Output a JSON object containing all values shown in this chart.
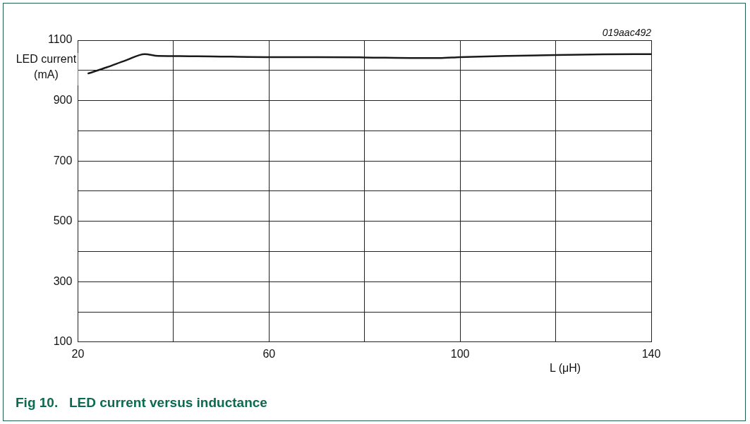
{
  "chart_data": {
    "type": "line",
    "title": "Fig 10.   LED current versus inductance",
    "xlabel": "L (μH)",
    "ylabel": "LED current (mA)",
    "annotations": [
      "019aac492"
    ],
    "x": [
      22.2,
      26,
      30,
      34,
      36.8,
      45,
      60,
      70,
      80,
      90.9,
      95.6,
      100,
      110,
      120,
      130,
      140
    ],
    "series": [
      {
        "color": "#1a1a1a",
        "values": [
          990,
          1010,
          1033,
          1054,
          1048,
          1047,
          1044,
          1044,
          1043,
          1041,
          1041,
          1044,
          1048,
          1051,
          1053,
          1054
        ]
      }
    ],
    "xlim": [
      20,
      140
    ],
    "ylim": [
      100,
      1100
    ],
    "xticks": [
      20,
      {
        "value": 40,
        "label": null
      },
      60,
      {
        "value": 80,
        "label": null
      },
      100,
      {
        "value": 120,
        "label": null
      },
      140
    ],
    "yticks": [
      100,
      {
        "value": 200,
        "label": null
      },
      300,
      {
        "value": 400,
        "label": null
      },
      500,
      {
        "value": 600,
        "label": null
      },
      700,
      {
        "value": 800,
        "label": null
      },
      900,
      {
        "value": 1000,
        "label": null
      },
      1100
    ],
    "grid": true,
    "legend": false,
    "marker": "none",
    "line_style": "solid"
  }
}
